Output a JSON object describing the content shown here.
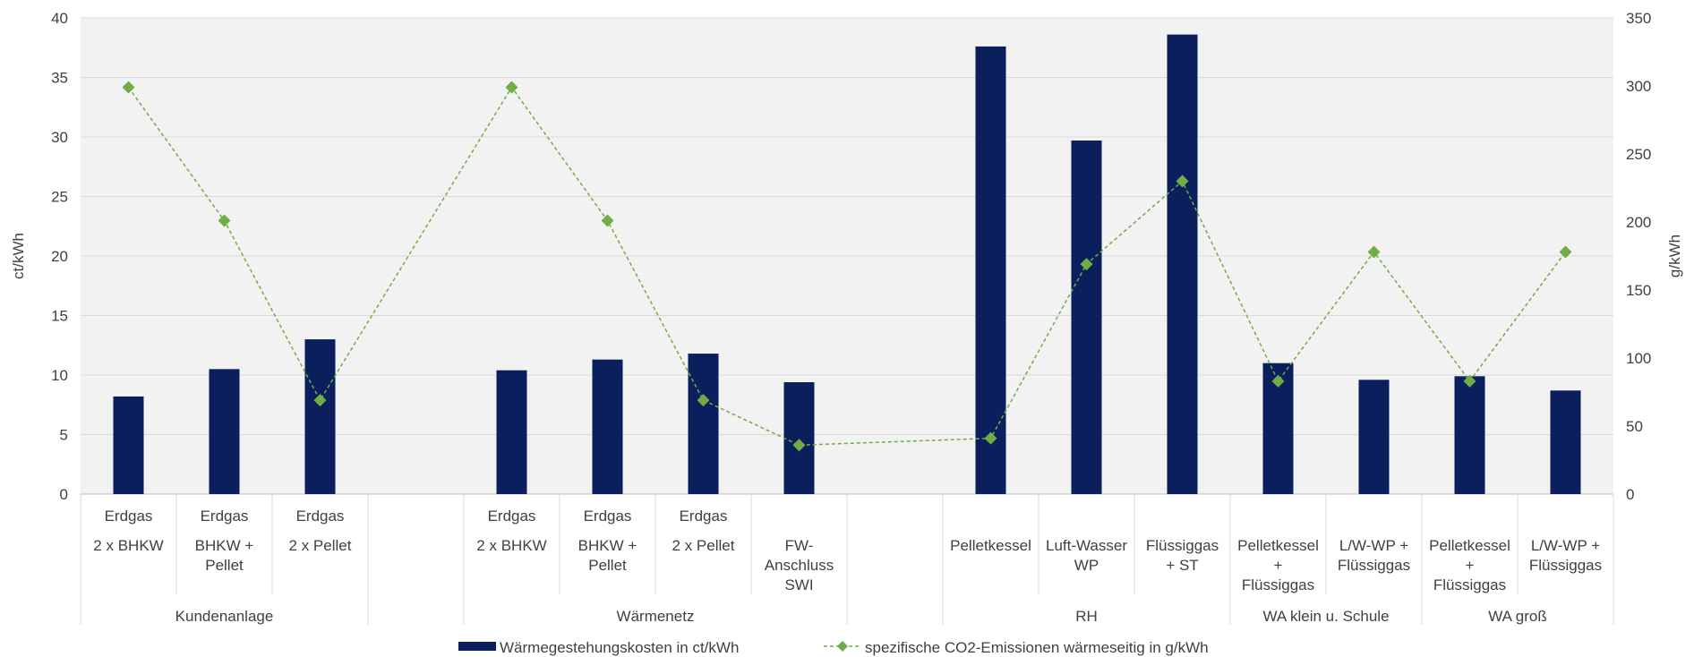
{
  "colors": {
    "bar": "#0b1f5c",
    "line": "#70ad47",
    "plot_bg": "#f2f2f2",
    "grid": "#d9d9d9",
    "text": "#404040"
  },
  "chart_data": {
    "type": "bar",
    "ylabel_left": "ct/kWh",
    "ylabel_right": "g/kWh",
    "ylim_left": [
      0,
      40
    ],
    "ylim_right": [
      0,
      350
    ],
    "yticks_left": [
      "0",
      "5",
      "10",
      "15",
      "20",
      "25",
      "30",
      "35",
      "40"
    ],
    "yticks_right": [
      "0",
      "50",
      "100",
      "150",
      "200",
      "250",
      "300",
      "350"
    ],
    "grid": true,
    "legend_position": "bottom",
    "categories": [
      {
        "row1": "Erdgas",
        "row2": "2 x BHKW"
      },
      {
        "row1": "Erdgas",
        "row2": "BHKW +\nPellet"
      },
      {
        "row1": "Erdgas",
        "row2": "2 x Pellet"
      },
      {
        "row1": "",
        "row2": ""
      },
      {
        "row1": "Erdgas",
        "row2": "2 x BHKW"
      },
      {
        "row1": "Erdgas",
        "row2": "BHKW +\nPellet"
      },
      {
        "row1": "Erdgas",
        "row2": "2 x Pellet"
      },
      {
        "row1": "",
        "row2": "FW-\nAnschluss\nSWI"
      },
      {
        "row1": "",
        "row2": ""
      },
      {
        "row1": "",
        "row2": "Pelletkessel"
      },
      {
        "row1": "",
        "row2": "Luft-Wasser\nWP"
      },
      {
        "row1": "",
        "row2": "Flüssiggas\n+ ST"
      },
      {
        "row1": "",
        "row2": "Pelletkessel\n+\nFlüssiggas"
      },
      {
        "row1": "",
        "row2": "L/W-WP +\nFlüssiggas"
      },
      {
        "row1": "",
        "row2": "Pelletkessel\n+\nFlüssiggas"
      },
      {
        "row1": "",
        "row2": "L/W-WP +\nFlüssiggas"
      }
    ],
    "groups": [
      {
        "label": "Kundenanlage",
        "start": 0,
        "end": 2
      },
      {
        "label": "Wärmenetz",
        "start": 4,
        "end": 7
      },
      {
        "label": "RH",
        "start": 9,
        "end": 11
      },
      {
        "label": "WA klein u. Schule",
        "start": 12,
        "end": 13
      },
      {
        "label": "WA groß",
        "start": 14,
        "end": 15
      }
    ],
    "series": [
      {
        "name": "Wärmegestehungskosten in ct/kWh",
        "type": "bar",
        "axis": "left",
        "values": [
          8.2,
          10.5,
          13.0,
          null,
          10.4,
          11.3,
          11.8,
          9.4,
          null,
          37.6,
          29.7,
          38.6,
          11.0,
          9.6,
          9.9,
          8.7
        ]
      },
      {
        "name": "spezifische CO2-Emissionen wärmeseitig in g/kWh",
        "type": "line",
        "axis": "right",
        "values": [
          299,
          201,
          69,
          null,
          299,
          201,
          69,
          36,
          null,
          41,
          169,
          230,
          83,
          178,
          83,
          178
        ]
      }
    ]
  }
}
